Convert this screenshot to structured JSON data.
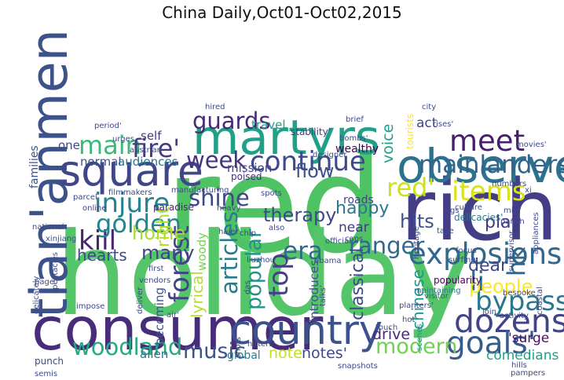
{
  "chart_data": {
    "type": "wordcloud",
    "title": "China Daily,Oct01-Oct02,2015",
    "words": [
      {
        "text": "red",
        "weight": 100,
        "color": "#4fc364",
        "rotated": false
      },
      {
        "text": "holiday",
        "weight": 86,
        "color": "#54c568",
        "rotated": false
      },
      {
        "text": "rich",
        "weight": 63,
        "color": "#433e85",
        "rotated": false
      },
      {
        "text": "consumer",
        "weight": 44,
        "color": "#472c7a",
        "rotated": false
      },
      {
        "text": "tian'anmen",
        "weight": 38,
        "color": "#3b528b",
        "rotated": true
      },
      {
        "text": "martyrs",
        "weight": 36,
        "color": "#1fa187",
        "rotated": false
      },
      {
        "text": "observes",
        "weight": 35,
        "color": "#2c728e",
        "rotated": false
      },
      {
        "text": "square",
        "weight": 32,
        "color": "#404688",
        "rotated": false
      },
      {
        "text": "country",
        "weight": 30,
        "color": "#3b528b",
        "rotated": false
      },
      {
        "text": "dozens'",
        "weight": 24,
        "color": "#414487",
        "rotated": false
      },
      {
        "text": "goals'",
        "weight": 23,
        "color": "#365c8d",
        "rotated": false
      },
      {
        "text": "explosions",
        "weight": 22,
        "color": "#31688e",
        "rotated": false
      },
      {
        "text": "meet",
        "weight": 22,
        "color": "#481f70",
        "rotated": false
      },
      {
        "text": "continue",
        "weight": 20,
        "color": "#3e4989",
        "rotated": false
      },
      {
        "text": "injure",
        "weight": 20,
        "color": "#26828e",
        "rotated": false
      },
      {
        "text": "kill",
        "weight": 20,
        "color": "#482475",
        "rotated": false
      },
      {
        "text": "bypass",
        "weight": 20,
        "color": "#2a788e",
        "rotated": false
      },
      {
        "text": "mainlanders",
        "weight": 18,
        "color": "#33638d",
        "rotated": false
      },
      {
        "text": "items",
        "weight": 20,
        "color": "#d8e219",
        "rotated": false
      },
      {
        "text": "red'",
        "weight": 19,
        "color": "#cde11d",
        "rotated": false
      },
      {
        "text": "main",
        "weight": 19,
        "color": "#3aba76",
        "rotated": false
      },
      {
        "text": "fire'",
        "weight": 19,
        "color": "#443983",
        "rotated": false
      },
      {
        "text": "golden",
        "weight": 19,
        "color": "#25858e",
        "rotated": false
      },
      {
        "text": "woodland",
        "weight": 17,
        "color": "#25ab82",
        "rotated": false
      },
      {
        "text": "guards",
        "weight": 17,
        "color": "#482878",
        "rotated": false
      },
      {
        "text": "week",
        "weight": 17,
        "color": "#46337f",
        "rotated": false
      },
      {
        "text": "shine",
        "weight": 17,
        "color": "#3f4788",
        "rotated": false
      },
      {
        "text": "era",
        "weight": 18,
        "color": "#31688e",
        "rotated": false
      },
      {
        "text": "forest",
        "weight": 20,
        "color": "#414487",
        "rotated": true
      },
      {
        "text": "articles'",
        "weight": 17,
        "color": "#297b8e",
        "rotated": true
      },
      {
        "text": "popular",
        "weight": 16,
        "color": "#21918c",
        "rotated": true
      },
      {
        "text": "top",
        "weight": 20,
        "color": "#433e85",
        "rotated": true
      },
      {
        "text": "music",
        "weight": 16,
        "color": "#3b528b",
        "rotated": false
      },
      {
        "text": "ranger",
        "weight": 17,
        "color": "#31688e",
        "rotated": false
      },
      {
        "text": "modern",
        "weight": 16,
        "color": "#73d056",
        "rotated": false
      },
      {
        "text": "li",
        "weight": 20,
        "color": "#2d708e",
        "rotated": false
      },
      {
        "text": "hk",
        "weight": 18,
        "color": "#30678d",
        "rotated": true
      },
      {
        "text": "people",
        "weight": 14,
        "color": "#fde725",
        "rotated": false
      },
      {
        "text": "home",
        "weight": 14,
        "color": "#a8db34",
        "rotated": false
      },
      {
        "text": "many",
        "weight": 14,
        "color": "#414487",
        "rotated": false
      },
      {
        "text": "therapy",
        "weight": 14,
        "color": "#3e4989",
        "rotated": false
      },
      {
        "text": "hits",
        "weight": 14,
        "color": "#3b528b",
        "rotated": false
      },
      {
        "text": "flow",
        "weight": 14,
        "color": "#3b528b",
        "rotated": false
      },
      {
        "text": "dear",
        "weight": 13,
        "color": "#404688",
        "rotated": false
      },
      {
        "text": "play",
        "weight": 13,
        "color": "#453882",
        "rotated": false
      },
      {
        "text": "happy",
        "weight": 13,
        "color": "#2a788e",
        "rotated": false
      },
      {
        "text": "right",
        "weight": 13,
        "color": "#b5de2b",
        "rotated": true
      },
      {
        "text": "hearts",
        "weight": 12,
        "color": "#3e4989",
        "rotated": false
      },
      {
        "text": "lyrical",
        "weight": 12,
        "color": "#b5de2b",
        "rotated": true
      },
      {
        "text": "classical",
        "weight": 13,
        "color": "#3e4989",
        "rotated": true
      },
      {
        "text": "chinese",
        "weight": 12,
        "color": "#1f968b",
        "rotated": true
      },
      {
        "text": "voice",
        "weight": 11,
        "color": "#1f9e89",
        "rotated": true
      },
      {
        "text": "note",
        "weight": 11,
        "color": "#c2df23",
        "rotated": false
      },
      {
        "text": "notes'",
        "weight": 11,
        "color": "#404688",
        "rotated": false
      },
      {
        "text": "drive",
        "weight": 11,
        "color": "#482878",
        "rotated": false
      },
      {
        "text": "comedians",
        "weight": 10,
        "color": "#1fa187",
        "rotated": false
      },
      {
        "text": "'surge",
        "weight": 10,
        "color": "#471063",
        "rotated": false
      },
      {
        "text": "act",
        "weight": 10,
        "color": "#3f4788",
        "rotated": false
      },
      {
        "text": "near",
        "weight": 10,
        "color": "#443983",
        "rotated": false
      },
      {
        "text": "allen",
        "weight": 9,
        "color": "#2c728e",
        "rotated": false
      },
      {
        "text": "mission",
        "weight": 9,
        "color": "#404688",
        "rotated": false
      },
      {
        "text": "travel",
        "weight": 9,
        "color": "#1f9e89",
        "rotated": false
      },
      {
        "text": "self",
        "weight": 9,
        "color": "#443983",
        "rotated": false
      },
      {
        "text": "one",
        "weight": 9,
        "color": "#3e4989",
        "rotated": false
      },
      {
        "text": "normal",
        "weight": 9,
        "color": "#3b528b",
        "rotated": false
      },
      {
        "text": "audiences",
        "weight": 9,
        "color": "#2c728e",
        "rotated": false
      },
      {
        "text": "woody",
        "weight": 9,
        "color": "#7ad151",
        "rotated": true
      },
      {
        "text": "introduces",
        "weight": 9,
        "color": "#3b528b",
        "rotated": true
      },
      {
        "text": "becoming",
        "weight": 9,
        "color": "#3b528b",
        "rotated": true
      },
      {
        "text": "global",
        "weight": 8,
        "color": "#287c8e",
        "rotated": false
      },
      {
        "text": "roads",
        "weight": 8,
        "color": "#414487",
        "rotated": false
      },
      {
        "text": "wealthy",
        "weight": 8,
        "color": "#440154",
        "rotated": false
      },
      {
        "text": "families",
        "weight": 8,
        "color": "#3b528b",
        "rotated": true
      },
      {
        "text": "tourists",
        "weight": 7,
        "color": "#fde725",
        "rotated": true
      },
      {
        "text": "paradise",
        "weight": 7,
        "color": "#482878",
        "rotated": false
      },
      {
        "text": "poised",
        "weight": 7,
        "color": "#472d7b",
        "rotated": false
      },
      {
        "text": "stability'",
        "weight": 7,
        "color": "#443983",
        "rotated": false
      },
      {
        "text": "delicacies'",
        "weight": 7,
        "color": "#2a788e",
        "rotated": false
      },
      {
        "text": "visitor",
        "weight": 6,
        "color": "#3b528b",
        "rotated": false
      },
      {
        "text": "popularity",
        "weight": 7,
        "color": "#440154",
        "rotated": false
      },
      {
        "text": "maintaining",
        "weight": 6,
        "color": "#2a788e",
        "rotated": false
      },
      {
        "text": "scenes",
        "weight": 6,
        "color": "#21918c",
        "rotated": true
      },
      {
        "text": "touch",
        "weight": 6,
        "color": "#3b528b",
        "rotated": false
      },
      {
        "text": "culture",
        "weight": 6,
        "color": "#3b528b",
        "rotated": false
      },
      {
        "text": "take",
        "weight": 6,
        "color": "#3e4989",
        "rotated": false
      },
      {
        "text": "legs'",
        "weight": 6,
        "color": "#3e4989",
        "rotated": false
      },
      {
        "text": "focus",
        "weight": 6,
        "color": "#3e4989",
        "rotated": false
      },
      {
        "text": "surfing",
        "weight": 6,
        "color": "#3e4989",
        "rotated": false
      },
      {
        "text": "planters'",
        "weight": 6,
        "color": "#3e4989",
        "rotated": false
      },
      {
        "text": "hot",
        "weight": 6,
        "color": "#3e4989",
        "rotated": false
      },
      {
        "text": "caps",
        "weight": 6,
        "color": "#3e4989",
        "rotated": false
      },
      {
        "text": "panjin",
        "weight": 6,
        "color": "#3e4989",
        "rotated": false
      },
      {
        "text": "supervisor",
        "weight": 6,
        "color": "#3e4989",
        "rotated": true
      },
      {
        "text": "heritage",
        "weight": 6,
        "color": "#3e4989",
        "rotated": true
      },
      {
        "text": "mi",
        "weight": 6,
        "color": "#3e4989",
        "rotated": false
      },
      {
        "text": "xi",
        "weight": 6,
        "color": "#3e4989",
        "rotated": false
      },
      {
        "text": "numbers",
        "weight": 6,
        "color": "#3e4989",
        "rotated": false
      },
      {
        "text": "appliances",
        "weight": 6,
        "color": "#3e4989",
        "rotated": true
      },
      {
        "text": "coastal",
        "weight": 6,
        "color": "#3e4989",
        "rotated": true
      },
      {
        "text": "bespoke",
        "weight": 6,
        "color": "#3e4989",
        "rotated": false
      },
      {
        "text": "join",
        "weight": 6,
        "color": "#3e4989",
        "rotated": false
      },
      {
        "text": "activity",
        "weight": 6,
        "color": "#3e4989",
        "rotated": false
      },
      {
        "text": "hills",
        "weight": 6,
        "color": "#3e4989",
        "rotated": false
      },
      {
        "text": "pampers",
        "weight": 6,
        "color": "#3e4989",
        "rotated": false
      },
      {
        "text": "snapshots",
        "weight": 6,
        "color": "#3e4989",
        "rotated": false
      },
      {
        "text": "shots'",
        "weight": 6,
        "color": "#3e4989",
        "rotated": true
      },
      {
        "text": "hitters'",
        "weight": 6,
        "color": "#3e4989",
        "rotated": false
      },
      {
        "text": "talks'",
        "weight": 6,
        "color": "#3e4989",
        "rotated": true
      },
      {
        "text": "obama",
        "weight": 6,
        "color": "#3e4989",
        "rotated": false
      },
      {
        "text": "official",
        "weight": 6,
        "color": "#3e4989",
        "rotated": false
      },
      {
        "text": "das",
        "weight": 6,
        "color": "#3e4989",
        "rotated": true
      },
      {
        "text": "liuzhou",
        "weight": 6,
        "color": "#3e4989",
        "rotated": false
      },
      {
        "text": "chip",
        "weight": 6,
        "color": "#3e4989",
        "rotated": false
      },
      {
        "text": "also",
        "weight": 6,
        "color": "#3e4989",
        "rotated": false
      },
      {
        "text": "haier",
        "weight": 6,
        "color": "#3e4989",
        "rotated": false
      },
      {
        "text": "heavy",
        "weight": 6,
        "color": "#3e4989",
        "rotated": false
      },
      {
        "text": "first",
        "weight": 6,
        "color": "#3e4989",
        "rotated": false
      },
      {
        "text": "vendors",
        "weight": 6,
        "color": "#3e4989",
        "rotated": false
      },
      {
        "text": "deliver",
        "weight": 6,
        "color": "#3e4989",
        "rotated": true
      },
      {
        "text": "air'",
        "weight": 6,
        "color": "#3e4989",
        "rotated": false
      },
      {
        "text": "impose",
        "weight": 6,
        "color": "#3e4989",
        "rotated": false
      },
      {
        "text": "spectacles",
        "weight": 6,
        "color": "#3e4989",
        "rotated": true
      },
      {
        "text": "page",
        "weight": 6,
        "color": "#3e4989",
        "rotated": false
      },
      {
        "text": "delicately",
        "weight": 6,
        "color": "#3e4989",
        "rotated": true
      },
      {
        "text": "national",
        "weight": 6,
        "color": "#3e4989",
        "rotated": false
      },
      {
        "text": "xinjiang",
        "weight": 6,
        "color": "#3e4989",
        "rotated": false
      },
      {
        "text": "online",
        "weight": 6,
        "color": "#3e4989",
        "rotated": false
      },
      {
        "text": "parcel",
        "weight": 6,
        "color": "#3e4989",
        "rotated": false
      },
      {
        "text": "filmmakers",
        "weight": 6,
        "color": "#3e4989",
        "rotated": false
      },
      {
        "text": "manufacturing",
        "weight": 6,
        "color": "#3e4989",
        "rotated": false
      },
      {
        "text": "spots",
        "weight": 6,
        "color": "#3e4989",
        "rotated": false
      },
      {
        "text": "designer",
        "weight": 6,
        "color": "#3e4989",
        "rotated": false
      },
      {
        "text": "bombs'",
        "weight": 6,
        "color": "#3e4989",
        "rotated": false
      },
      {
        "text": "brief",
        "weight": 6,
        "color": "#3e4989",
        "rotated": false
      },
      {
        "text": "hired",
        "weight": 6,
        "color": "#3e4989",
        "rotated": false
      },
      {
        "text": "period'",
        "weight": 6,
        "color": "#3e4989",
        "rotated": false
      },
      {
        "text": "urges",
        "weight": 6,
        "color": "#3e4989",
        "rotated": false
      },
      {
        "text": "austrian",
        "weight": 6,
        "color": "#3e4989",
        "rotated": false
      },
      {
        "text": "city",
        "weight": 6,
        "color": "#3e4989",
        "rotated": false
      },
      {
        "text": "rises'",
        "weight": 6,
        "color": "#3e4989",
        "rotated": false
      },
      {
        "text": "movies'",
        "weight": 6,
        "color": "#3e4989",
        "rotated": false
      },
      {
        "text": "punch",
        "weight": 7,
        "color": "#3e4989",
        "rotated": false
      },
      {
        "text": "semis",
        "weight": 6,
        "color": "#3e4989",
        "rotated": false
      }
    ]
  }
}
